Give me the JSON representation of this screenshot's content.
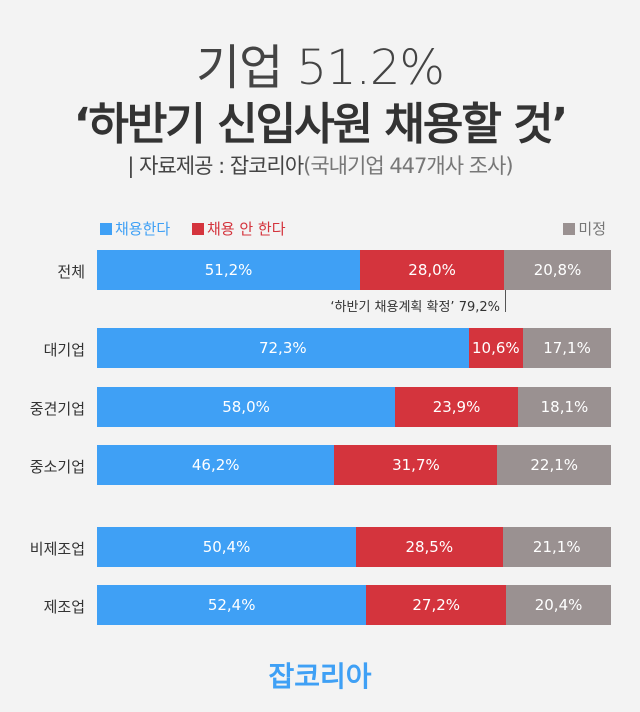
{
  "title_line1": "기업 51.2%",
  "title_line2": "‘하반기 신입사원 채용할 것’",
  "source": "| 자료제공 : 잡코리아",
  "source_detail": "(국내기업 447개사 조사)",
  "logo": "잡코리아",
  "chart_data": {
    "type": "bar",
    "orientation": "horizontal",
    "stacked": true,
    "unit": "%",
    "xlim": [
      0,
      100
    ],
    "categories": [
      "전체",
      "대기업",
      "중견기업",
      "중소기업",
      "비제조업",
      "제조업"
    ],
    "series": [
      {
        "name": "채용한다",
        "color": "#3fa0f5",
        "values": [
          51.2,
          72.3,
          58.0,
          46.2,
          50.4,
          52.4
        ],
        "labels": [
          "51,2%",
          "72,3%",
          "58,0%",
          "46,2%",
          "50,4%",
          "52,4%"
        ]
      },
      {
        "name": "채용 안 한다",
        "color": "#d4343d",
        "values": [
          28.0,
          10.6,
          23.9,
          31.7,
          28.5,
          27.2
        ],
        "labels": [
          "28,0%",
          "10,6%",
          "23,9%",
          "31,7%",
          "28,5%",
          "27,2%"
        ]
      },
      {
        "name": "미정",
        "color": "#9a9191",
        "values": [
          20.8,
          17.1,
          18.1,
          22.1,
          21.1,
          20.4
        ],
        "labels": [
          "20,8%",
          "17,1%",
          "18,1%",
          "22,1%",
          "21,1%",
          "20,4%"
        ]
      }
    ],
    "annotation": "‘하반기 채용계획 확정’ 79,2%"
  }
}
